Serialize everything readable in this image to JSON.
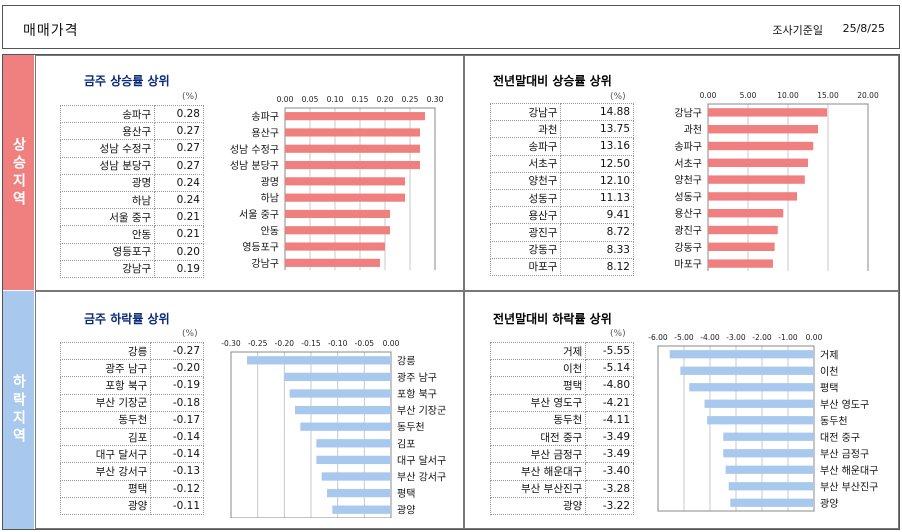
{
  "header": {
    "title": "매매가격",
    "date_label": "조사기준일",
    "date_value": "25/8/25"
  },
  "side_labels": {
    "up": "상승지역",
    "down": "하락지역"
  },
  "unit_label": "(%)",
  "colors": {
    "rise": "#F08080",
    "fall": "#A9C8EE"
  },
  "chart_data": [
    {
      "type": "bar",
      "title": "금주 상승률 상위",
      "categories": [
        "송파구",
        "용산구",
        "성남 수정구",
        "성남 분당구",
        "광명",
        "하남",
        "서울 중구",
        "안동",
        "영등포구",
        "강남구"
      ],
      "values": [
        0.28,
        0.27,
        0.27,
        0.27,
        0.24,
        0.24,
        0.21,
        0.21,
        0.2,
        0.19
      ],
      "value_labels": [
        "0.28",
        "0.27",
        "0.27",
        "0.27",
        "0.24",
        "0.24",
        "0.21",
        "0.21",
        "0.20",
        "0.19"
      ],
      "xlim": [
        0,
        0.3
      ],
      "ticks": [
        "0.00",
        "0.05",
        "0.10",
        "0.15",
        "0.20",
        "0.25",
        "0.30"
      ],
      "orientation": "horizontal",
      "unit": "%"
    },
    {
      "type": "bar",
      "title": "전년말대비 상승률 상위",
      "categories": [
        "강남구",
        "과천",
        "송파구",
        "서초구",
        "양천구",
        "성동구",
        "용산구",
        "광진구",
        "강동구",
        "마포구"
      ],
      "values": [
        14.88,
        13.75,
        13.16,
        12.5,
        12.1,
        11.13,
        9.41,
        8.72,
        8.33,
        8.12
      ],
      "value_labels": [
        "14.88",
        "13.75",
        "13.16",
        "12.50",
        "12.10",
        "11.13",
        "9.41",
        "8.72",
        "8.33",
        "8.12"
      ],
      "xlim": [
        0,
        20
      ],
      "ticks": [
        "0.00",
        "5.00",
        "10.00",
        "15.00",
        "20.00"
      ],
      "orientation": "horizontal",
      "unit": "%"
    },
    {
      "type": "bar",
      "title": "금주 하락률 상위",
      "categories": [
        "강릉",
        "광주 남구",
        "포항 북구",
        "부산 기장군",
        "동두천",
        "김포",
        "대구 달서구",
        "부산 강서구",
        "평택",
        "광양"
      ],
      "values": [
        -0.27,
        -0.2,
        -0.19,
        -0.18,
        -0.17,
        -0.14,
        -0.14,
        -0.13,
        -0.12,
        -0.11
      ],
      "value_labels": [
        "-0.27",
        "-0.20",
        "-0.19",
        "-0.18",
        "-0.17",
        "-0.14",
        "-0.14",
        "-0.13",
        "-0.12",
        "-0.11"
      ],
      "xlim": [
        -0.3,
        0
      ],
      "ticks": [
        "-0.30",
        "-0.25",
        "-0.20",
        "-0.15",
        "-0.10",
        "-0.05",
        "0.00"
      ],
      "orientation": "horizontal",
      "unit": "%"
    },
    {
      "type": "bar",
      "title": "전년말대비 하락률 상위",
      "categories": [
        "거제",
        "이천",
        "평택",
        "부산 영도구",
        "동두천",
        "대전 중구",
        "부산 금정구",
        "부산 해운대구",
        "부산 부산진구",
        "광양"
      ],
      "values": [
        -5.55,
        -5.14,
        -4.8,
        -4.21,
        -4.11,
        -3.49,
        -3.49,
        -3.4,
        -3.28,
        -3.22
      ],
      "value_labels": [
        "-5.55",
        "-5.14",
        "-4.80",
        "-4.21",
        "-4.11",
        "-3.49",
        "-3.49",
        "-3.40",
        "-3.28",
        "-3.22"
      ],
      "xlim": [
        -6,
        0
      ],
      "ticks": [
        "-6.00",
        "-5.00",
        "-4.00",
        "-3.00",
        "-2.00",
        "-1.00",
        "0.00"
      ],
      "orientation": "horizontal",
      "unit": "%"
    }
  ]
}
